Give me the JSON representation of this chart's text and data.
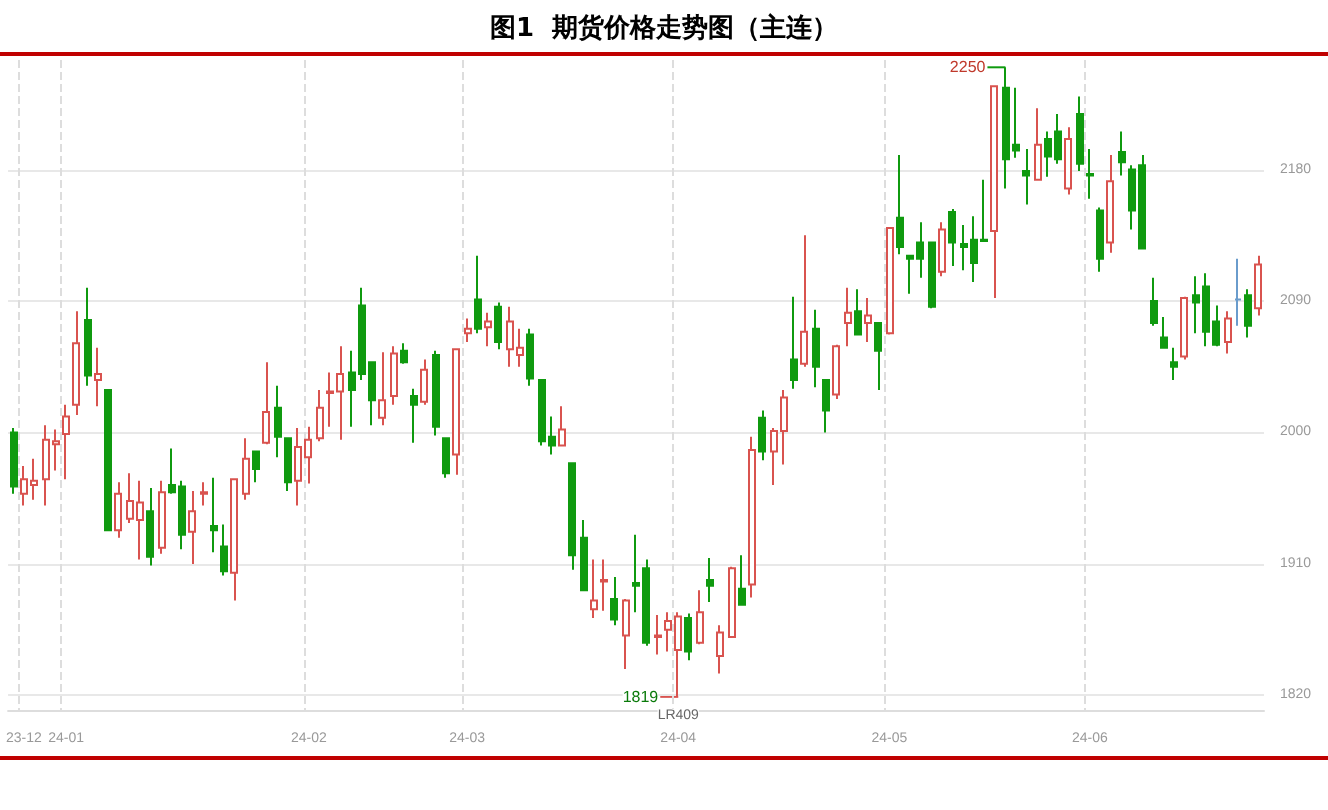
{
  "chart_data": {
    "type": "candlestick",
    "title": "图1  期货价格走势图（主连）",
    "categories": [
      null,
      "23-12",
      null,
      null,
      null,
      "24-01",
      null,
      null,
      null,
      null,
      null,
      null,
      null,
      null,
      null,
      null,
      null,
      null,
      null,
      null,
      null,
      null,
      null,
      null,
      null,
      null,
      null,
      null,
      "24-02",
      null,
      null,
      null,
      null,
      null,
      null,
      null,
      null,
      null,
      null,
      null,
      null,
      null,
      null,
      "24-03",
      null,
      null,
      null,
      null,
      null,
      null,
      null,
      null,
      null,
      null,
      null,
      null,
      null,
      null,
      null,
      null,
      null,
      null,
      null,
      "24-04",
      null,
      null,
      null,
      null,
      null,
      null,
      null,
      null,
      null,
      null,
      null,
      null,
      null,
      null,
      null,
      null,
      null,
      null,
      null,
      "24-05",
      null,
      null,
      null,
      null,
      null,
      null,
      null,
      null,
      null,
      null,
      null,
      null,
      null,
      null,
      null,
      null,
      null,
      null,
      "24-06",
      null,
      null,
      null,
      null,
      null,
      null,
      null,
      null,
      null,
      null,
      null,
      null,
      null,
      null,
      null,
      null
    ],
    "ohlc": [
      [
        2000,
        2003,
        1958,
        1963
      ],
      [
        1958,
        1977,
        1950,
        1968
      ],
      [
        1964,
        1982,
        1954,
        1967
      ],
      [
        1968,
        2005,
        1950,
        1995
      ],
      [
        1992,
        2002,
        1974,
        1994
      ],
      [
        1999,
        2019,
        1968,
        2011
      ],
      [
        2019,
        2083,
        2012,
        2061
      ],
      [
        2077,
        2099,
        2032,
        2039
      ],
      [
        2036,
        2058,
        2018,
        2040
      ],
      [
        2029,
        2029,
        1933,
        1933
      ],
      [
        1933,
        1966,
        1928,
        1958
      ],
      [
        1941,
        1972,
        1938,
        1953
      ],
      [
        1940,
        1967,
        1913,
        1952
      ],
      [
        1946,
        1962,
        1909,
        1915
      ],
      [
        1921,
        1967,
        1917,
        1959
      ],
      [
        1964,
        1989,
        1958,
        1959
      ],
      [
        1963,
        1967,
        1920,
        1930
      ],
      [
        1932,
        1960,
        1910,
        1946
      ],
      [
        1958,
        1966,
        1950,
        1959
      ],
      [
        1936,
        1969,
        1918,
        1933
      ],
      [
        1922,
        1937,
        1902,
        1905
      ],
      [
        1904,
        1968,
        1885,
        1968
      ],
      [
        1958,
        1996,
        1954,
        1982
      ],
      [
        1987,
        1987,
        1966,
        1975
      ],
      [
        1993,
        2048,
        1992,
        2014
      ],
      [
        2017,
        2032,
        1983,
        1997
      ],
      [
        1996,
        1996,
        1960,
        1966
      ],
      [
        1967,
        2003,
        1950,
        1990
      ],
      [
        1983,
        2004,
        1965,
        1995
      ],
      [
        1996,
        2029,
        1994,
        2017
      ],
      [
        2027,
        2041,
        2004,
        2028
      ],
      [
        2028,
        2059,
        1995,
        2040
      ],
      [
        2041,
        2056,
        2004,
        2029
      ],
      [
        2087,
        2099,
        2036,
        2040
      ],
      [
        2048,
        2048,
        2005,
        2022
      ],
      [
        2010,
        2055,
        2005,
        2022
      ],
      [
        2025,
        2059,
        2019,
        2054
      ],
      [
        2056,
        2061,
        2047,
        2048
      ],
      [
        2025,
        2030,
        1993,
        2019
      ],
      [
        2021,
        2050,
        2019,
        2043
      ],
      [
        2053,
        2056,
        1998,
        2004
      ],
      [
        1996,
        1996,
        1969,
        1972
      ],
      [
        1985,
        2057,
        1971,
        2057
      ],
      [
        2068,
        2078,
        2062,
        2071
      ],
      [
        2091,
        2121,
        2068,
        2071
      ],
      [
        2072,
        2082,
        2059,
        2076
      ],
      [
        2086,
        2089,
        2057,
        2062
      ],
      [
        2057,
        2086,
        2045,
        2076
      ],
      [
        2053,
        2071,
        2045,
        2058
      ],
      [
        2067,
        2071,
        2032,
        2037
      ],
      [
        2036,
        2036,
        1991,
        1994
      ],
      [
        1997,
        2011,
        1985,
        1991
      ],
      [
        1991,
        2018,
        1991,
        2002
      ],
      [
        1979,
        1979,
        1906,
        1916
      ],
      [
        1928,
        1940,
        1892,
        1892
      ],
      [
        1879,
        1913,
        1873,
        1885
      ],
      [
        1898,
        1913,
        1878,
        1899
      ],
      [
        1886,
        1901,
        1868,
        1872
      ],
      [
        1861,
        1886,
        1838,
        1885
      ],
      [
        1897,
        1930,
        1877,
        1895
      ],
      [
        1907,
        1913,
        1854,
        1856
      ],
      [
        1860,
        1875,
        1848,
        1861
      ],
      [
        1865,
        1877,
        1850,
        1871
      ],
      [
        1851,
        1877,
        1819,
        1874
      ],
      [
        1873,
        1876,
        1844,
        1850
      ],
      [
        1856,
        1892,
        1855,
        1877
      ],
      [
        1899,
        1914,
        1884,
        1895
      ],
      [
        1847,
        1868,
        1835,
        1863
      ],
      [
        1860,
        1908,
        1860,
        1907
      ],
      [
        1893,
        1916,
        1882,
        1882
      ],
      [
        1896,
        1997,
        1887,
        1988
      ],
      [
        2010,
        2015,
        1981,
        1987
      ],
      [
        1987,
        2003,
        1964,
        2001
      ],
      [
        2001,
        2029,
        1978,
        2024
      ],
      [
        2050,
        2093,
        2030,
        2036
      ],
      [
        2047,
        2135,
        2045,
        2069
      ],
      [
        2071,
        2084,
        2031,
        2045
      ],
      [
        2036,
        2036,
        2000,
        2015
      ],
      [
        2026,
        2060,
        2023,
        2059
      ],
      [
        2075,
        2099,
        2059,
        2082
      ],
      [
        2083,
        2098,
        2067,
        2067
      ],
      [
        2075,
        2092,
        2062,
        2080
      ],
      [
        2075,
        2075,
        2029,
        2056
      ],
      [
        2068,
        2140,
        2067,
        2140
      ],
      [
        2147,
        2190,
        2122,
        2127
      ],
      [
        2121,
        2121,
        2095,
        2119
      ],
      [
        2130,
        2144,
        2106,
        2119
      ],
      [
        2130,
        2130,
        2085,
        2086
      ],
      [
        2110,
        2144,
        2107,
        2139
      ],
      [
        2151,
        2153,
        2114,
        2130
      ],
      [
        2129,
        2142,
        2111,
        2127
      ],
      [
        2132,
        2148,
        2103,
        2116
      ],
      [
        2132,
        2173,
        2131,
        2131
      ],
      [
        2138,
        2237,
        2092,
        2237
      ],
      [
        2236,
        2250,
        2167,
        2187
      ],
      [
        2197,
        2236,
        2188,
        2193
      ],
      [
        2179,
        2194,
        2156,
        2176
      ],
      [
        2173,
        2222,
        2173,
        2197
      ],
      [
        2201,
        2206,
        2175,
        2189
      ],
      [
        2206,
        2218,
        2184,
        2187
      ],
      [
        2167,
        2209,
        2163,
        2201
      ],
      [
        2218,
        2230,
        2179,
        2184
      ],
      [
        2177,
        2194,
        2160,
        2176
      ],
      [
        2152,
        2154,
        2110,
        2119
      ],
      [
        2130,
        2190,
        2123,
        2172
      ],
      [
        2192,
        2206,
        2176,
        2185
      ],
      [
        2180,
        2183,
        2139,
        2152
      ],
      [
        2183,
        2190,
        2126,
        2126
      ],
      [
        2090,
        2106,
        2073,
        2075
      ],
      [
        2065,
        2079,
        2058,
        2058
      ],
      [
        2048,
        2058,
        2036,
        2045
      ],
      [
        2052,
        2093,
        2050,
        2092
      ],
      [
        2094,
        2107,
        2068,
        2089
      ],
      [
        2100,
        2109,
        2059,
        2069
      ],
      [
        2076,
        2087,
        2059,
        2060
      ],
      [
        2062,
        2083,
        2054,
        2078
      ],
      [
        2091,
        2119,
        2073,
        2091
      ],
      [
        2094,
        2098,
        2065,
        2073
      ],
      [
        2085,
        2121,
        2080,
        2115
      ]
    ],
    "colors": [
      "#0f9a0f",
      "#d9534f",
      "#d9534f",
      "#d9534f",
      "#d9534f",
      "#d9534f",
      "#d9534f",
      "#0f9a0f",
      "#d9534f",
      "#0f9a0f",
      "#d9534f",
      "#d9534f",
      "#d9534f",
      "#0f9a0f",
      "#d9534f",
      "#0f9a0f",
      "#0f9a0f",
      "#d9534f",
      "#d9534f",
      "#0f9a0f",
      "#0f9a0f",
      "#d9534f",
      "#d9534f",
      "#0f9a0f",
      "#d9534f",
      "#0f9a0f",
      "#0f9a0f",
      "#d9534f",
      "#d9534f",
      "#d9534f",
      "#d9534f",
      "#d9534f",
      "#0f9a0f",
      "#0f9a0f",
      "#0f9a0f",
      "#d9534f",
      "#d9534f",
      "#0f9a0f",
      "#0f9a0f",
      "#d9534f",
      "#0f9a0f",
      "#0f9a0f",
      "#d9534f",
      "#d9534f",
      "#0f9a0f",
      "#d9534f",
      "#0f9a0f",
      "#d9534f",
      "#d9534f",
      "#0f9a0f",
      "#0f9a0f",
      "#0f9a0f",
      "#d9534f",
      "#0f9a0f",
      "#0f9a0f",
      "#d9534f",
      "#d9534f",
      "#0f9a0f",
      "#d9534f",
      "#0f9a0f",
      "#0f9a0f",
      "#d9534f",
      "#d9534f",
      "#d9534f",
      "#0f9a0f",
      "#d9534f",
      "#0f9a0f",
      "#d9534f",
      "#d9534f",
      "#0f9a0f",
      "#d9534f",
      "#0f9a0f",
      "#d9534f",
      "#d9534f",
      "#0f9a0f",
      "#d9534f",
      "#0f9a0f",
      "#0f9a0f",
      "#d9534f",
      "#d9534f",
      "#0f9a0f",
      "#d9534f",
      "#0f9a0f",
      "#d9534f",
      "#0f9a0f",
      "#0f9a0f",
      "#0f9a0f",
      "#0f9a0f",
      "#d9534f",
      "#0f9a0f",
      "#0f9a0f",
      "#0f9a0f",
      "#0f9a0f",
      "#d9534f",
      "#0f9a0f",
      "#0f9a0f",
      "#0f9a0f",
      "#d9534f",
      "#0f9a0f",
      "#0f9a0f",
      "#d9534f",
      "#0f9a0f",
      "#0f9a0f",
      "#0f9a0f",
      "#d9534f",
      "#0f9a0f",
      "#0f9a0f",
      "#0f9a0f",
      "#0f9a0f",
      "#0f9a0f",
      "#0f9a0f",
      "#d9534f",
      "#0f9a0f",
      "#0f9a0f",
      "#0f9a0f",
      "#d9534f",
      "#6a9ccc",
      "#0f9a0f",
      "#d9534f"
    ],
    "ylim": [
      1810,
      2255
    ],
    "yticks": [
      1820,
      1910,
      2000,
      2090,
      2180
    ],
    "grid": true,
    "annotations": [
      "2250",
      "1819",
      "LR409"
    ]
  }
}
